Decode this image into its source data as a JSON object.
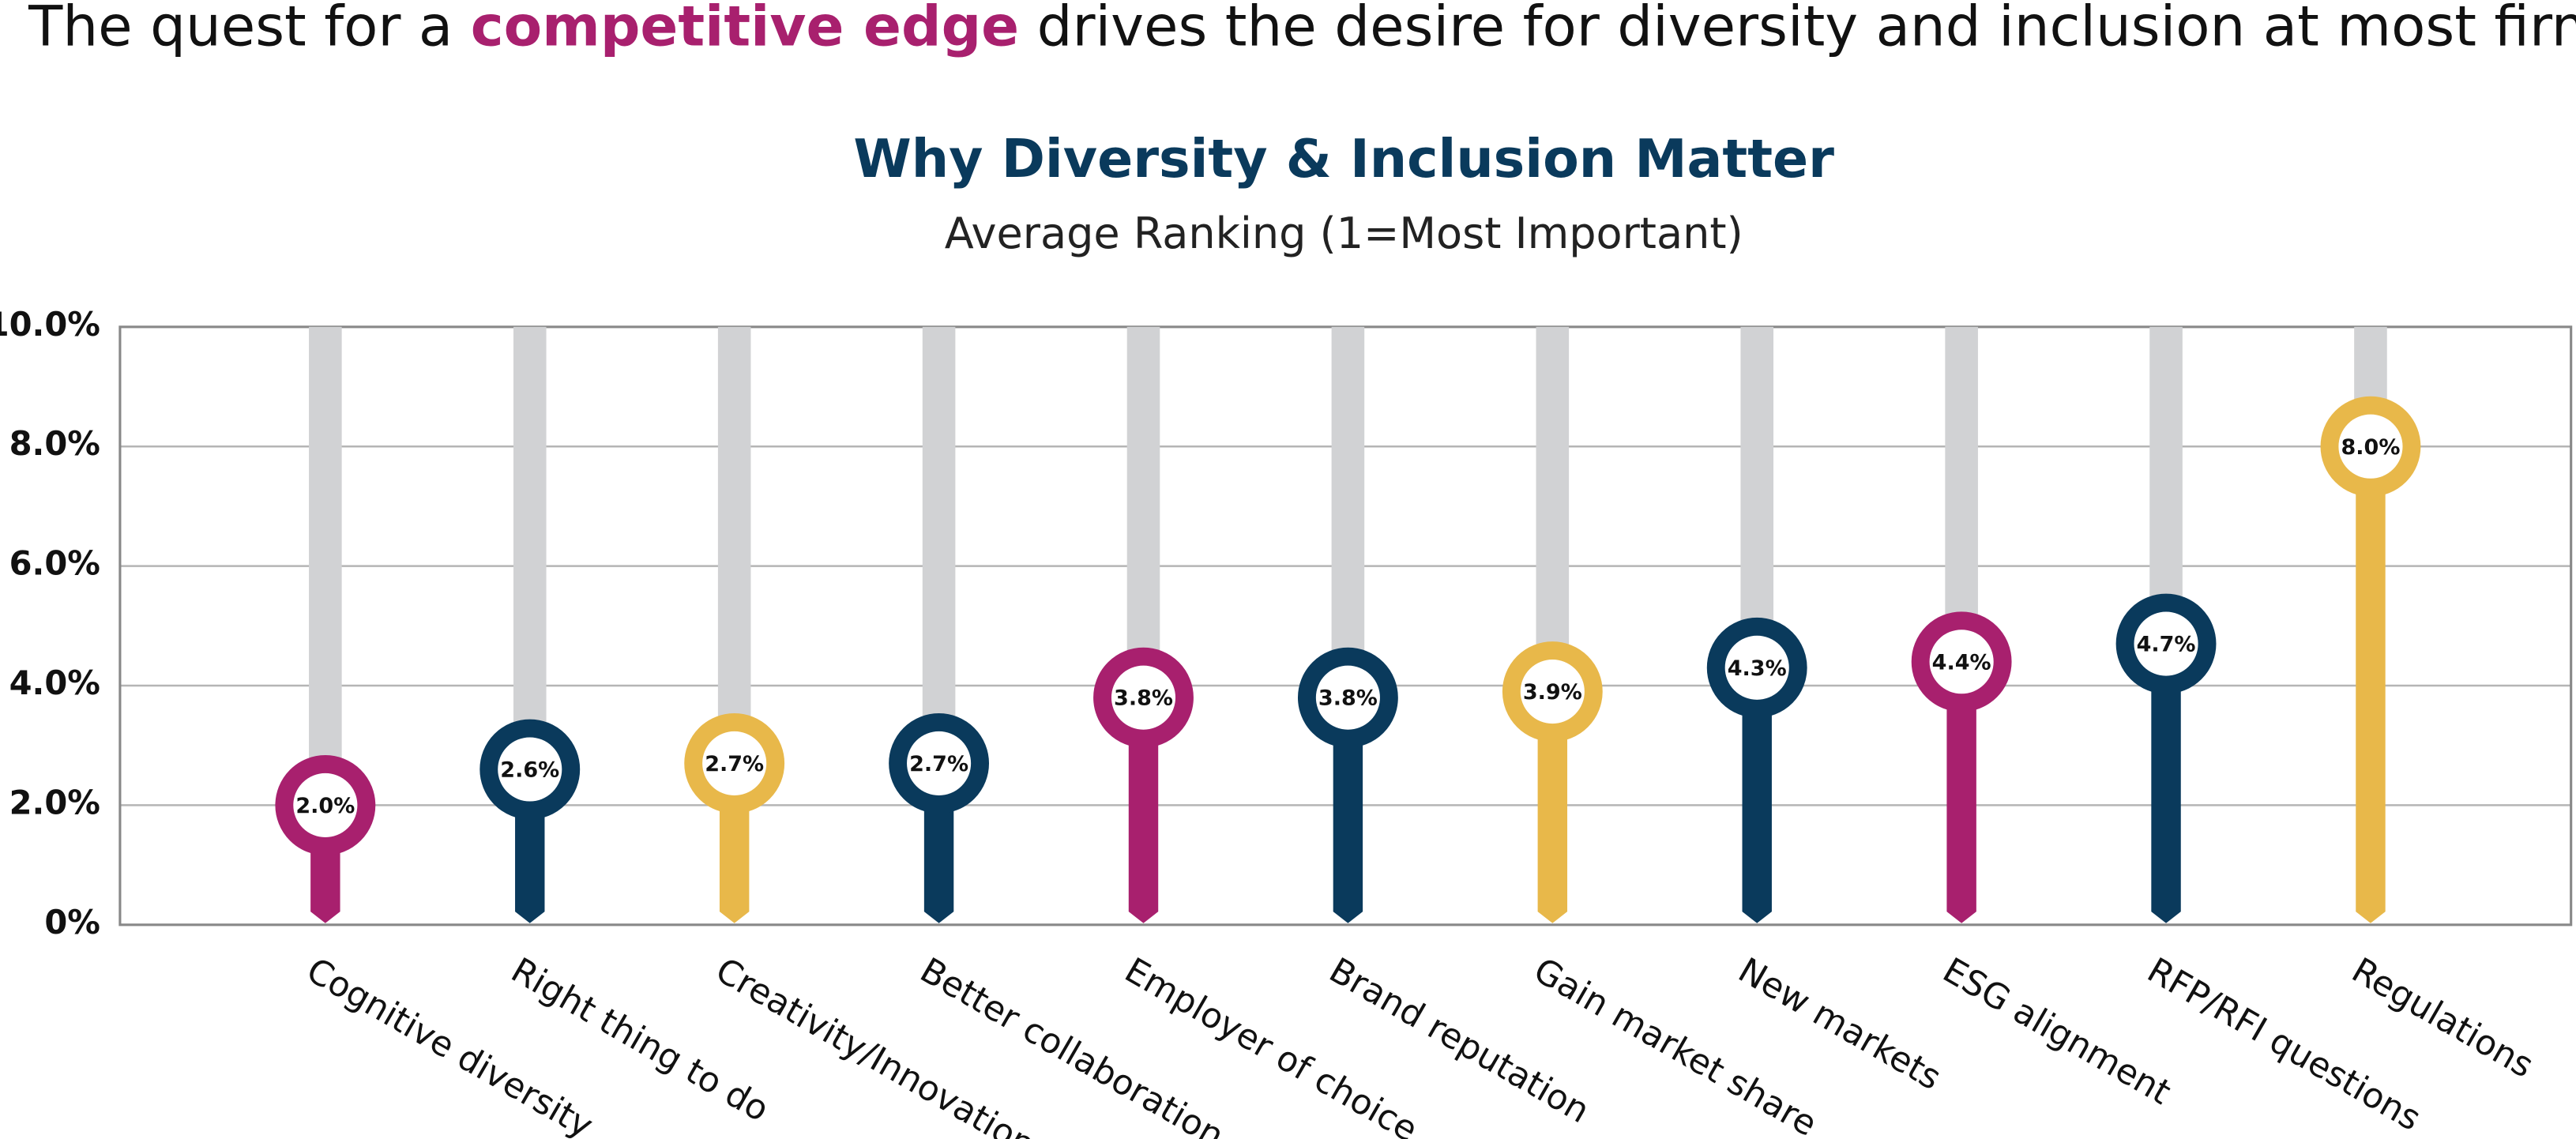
{
  "chart_data": {
    "type": "lollipop",
    "headline": [
      "The quest for a ",
      "competitive edge",
      " drives the desire for diversity and inclusion at most firms."
    ],
    "title": "Why Diversity & Inclusion Matter",
    "subtitle": "Average Ranking (1=Most Important)",
    "categories": [
      "Cognitive diversity",
      "Right thing to do",
      "Creativity/Innovation",
      "Better collaboration",
      "Employer of choice",
      "Brand reputation",
      "Gain market share",
      "New markets",
      "ESG alignment",
      "RFP/RFI questions",
      "Regulations"
    ],
    "values": [
      2.0,
      2.6,
      2.7,
      2.7,
      3.8,
      3.8,
      3.9,
      4.3,
      4.4,
      4.7,
      8.0
    ],
    "value_labels": [
      "2.0%",
      "2.6%",
      "2.7%",
      "2.7%",
      "3.8%",
      "3.8%",
      "3.9%",
      "4.3%",
      "4.4%",
      "4.7%",
      "8.0%"
    ],
    "colors": [
      "#a8206e",
      "#0a3a5c",
      "#e8b84a",
      "#0a3a5c",
      "#a8206e",
      "#0a3a5c",
      "#e8b84a",
      "#0a3a5c",
      "#a8206e",
      "#0a3a5c",
      "#e8b84a"
    ],
    "ylim": [
      0,
      10
    ],
    "yticks": [
      {
        "value": 0,
        "label": "0%"
      },
      {
        "value": 2,
        "label": "2.0%"
      },
      {
        "value": 4,
        "label": "4.0%"
      },
      {
        "value": 6,
        "label": "6.0%"
      },
      {
        "value": 8,
        "label": "8.0%"
      },
      {
        "value": 10,
        "label": "10.0%"
      }
    ],
    "grid": true
  }
}
